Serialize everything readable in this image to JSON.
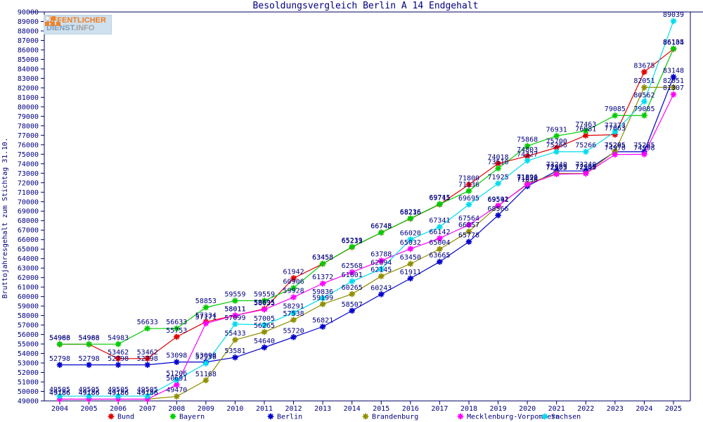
{
  "logo": {
    "line1": "ÖFFENTLICHER",
    "line2_strong": "DIENST",
    "line2_suffix": ".INFO"
  },
  "chart_data": {
    "type": "line",
    "title": "Besoldungsvergleich Berlin A 14 Endgehalt",
    "xlabel": "",
    "ylabel": "Bruttojahresgehalt zum Stichtag 31.10.",
    "ylim": [
      49000,
      90000
    ],
    "ytick_step": 1000,
    "grid": false,
    "legend_position": "bottom",
    "point_labels": true,
    "axis_color": "#000066",
    "label_color": "#000080",
    "x": [
      2004,
      2005,
      2006,
      2007,
      2008,
      2009,
      2010,
      2011,
      2012,
      2013,
      2014,
      2015,
      2016,
      2017,
      2018,
      2019,
      2020,
      2021,
      2022,
      2023,
      2024,
      2025
    ],
    "series": [
      {
        "name": "Bund",
        "color": "#e00000",
        "values": [
          54966,
          54966,
          53462,
          53462,
          55753,
          57334,
          58011,
          58695,
          61942,
          63453,
          65211,
          66745,
          68216,
          69715,
          71800,
          74018,
          74803,
          75700,
          76981,
          77063,
          83675,
          86104
        ]
      },
      {
        "name": "Bayern",
        "color": "#00cc00",
        "values": [
          54983,
          54983,
          54983,
          56633,
          56633,
          58853,
          59559,
          59559,
          60906,
          63458,
          65239,
          66748,
          68236,
          69745,
          71136,
          73510,
          75868,
          76931,
          77463,
          79085,
          79085,
          86135
        ]
      },
      {
        "name": "Berlin",
        "color": "#0000cc",
        "values": [
          52798,
          52798,
          52798,
          52798,
          53098,
          53098,
          53581,
          54640,
          55720,
          56821,
          58507,
          60243,
          61911,
          63665,
          65778,
          68566,
          71636,
          73240,
          73240,
          75265,
          75265,
          83148
        ]
      },
      {
        "name": "Brandenburg",
        "color": "#8f8f00",
        "values": [
          49186,
          49186,
          49186,
          49186,
          49470,
          51168,
          55433,
          56265,
          57538,
          59199,
          60265,
          62145,
          63450,
          65004,
          66857,
          69541,
          71896,
          72989,
          72989,
          75295,
          82051,
          82051
        ]
      },
      {
        "name": "Mecklenburg-Vorpommern",
        "color": "#ff00ff",
        "values": [
          49186,
          49186,
          49186,
          49186,
          50691,
          57171,
          58011,
          58635,
          59928,
          61372,
          62568,
          63788,
          65032,
          66142,
          67564,
          69592,
          71829,
          72903,
          72963,
          74970,
          74998,
          81307
        ]
      },
      {
        "name": "Sachsen",
        "color": "#00dcec",
        "values": [
          49505,
          49505,
          49505,
          49505,
          51206,
          52958,
          57099,
          57005,
          58291,
          59836,
          61601,
          62894,
          66020,
          67341,
          69695,
          71925,
          74327,
          75266,
          75266,
          77373,
          80562,
          89039
        ]
      }
    ]
  }
}
